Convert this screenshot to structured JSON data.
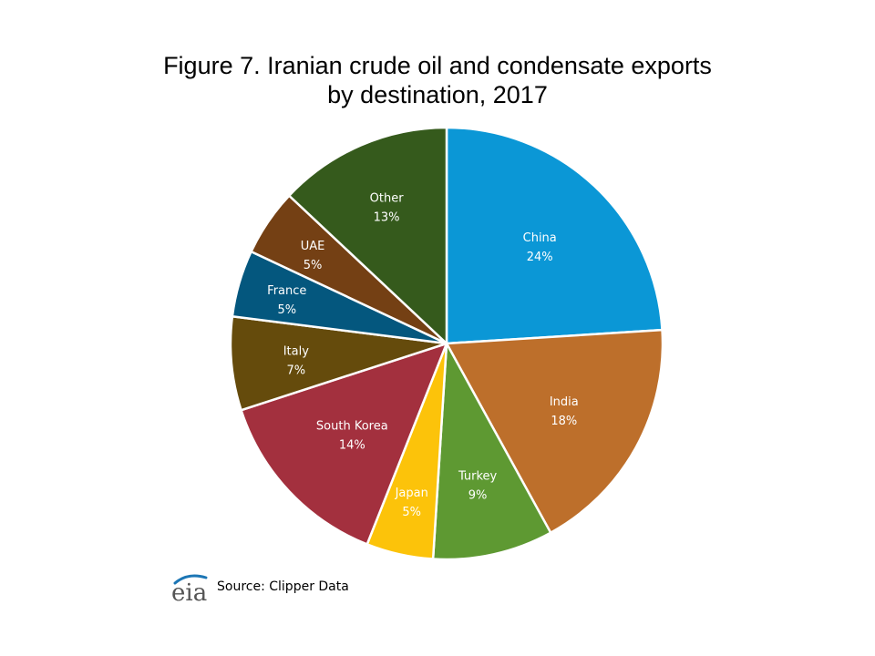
{
  "chart_data": {
    "type": "pie",
    "title_line1": "Figure 7. Iranian crude oil and condensate exports",
    "title_line2": "by destination, 2017",
    "start_angle_deg": 0,
    "direction": "clockwise",
    "slices": [
      {
        "label": "China",
        "value": 24,
        "value_label": "24%",
        "color": "#0B97D6"
      },
      {
        "label": "India",
        "value": 18,
        "value_label": "18%",
        "color": "#BD6F2B"
      },
      {
        "label": "Turkey",
        "value": 9,
        "value_label": "9%",
        "color": "#5E9932"
      },
      {
        "label": "Japan",
        "value": 5,
        "value_label": "5%",
        "color": "#FCC30A"
      },
      {
        "label": "South Korea",
        "value": 14,
        "value_label": "14%",
        "color": "#A3303E"
      },
      {
        "label": "Italy",
        "value": 7,
        "value_label": "7%",
        "color": "#654B0C"
      },
      {
        "label": "France",
        "value": 5,
        "value_label": "5%",
        "color": "#04577E"
      },
      {
        "label": "UAE",
        "value": 5,
        "value_label": "5%",
        "color": "#744014"
      },
      {
        "label": "Other",
        "value": 13,
        "value_label": "13%",
        "color": "#355A1C"
      }
    ],
    "source": "Source: Clipper Data"
  },
  "logo": {
    "text": "eia",
    "icon": "eia-logo-icon",
    "accent": "#1C76B5"
  }
}
